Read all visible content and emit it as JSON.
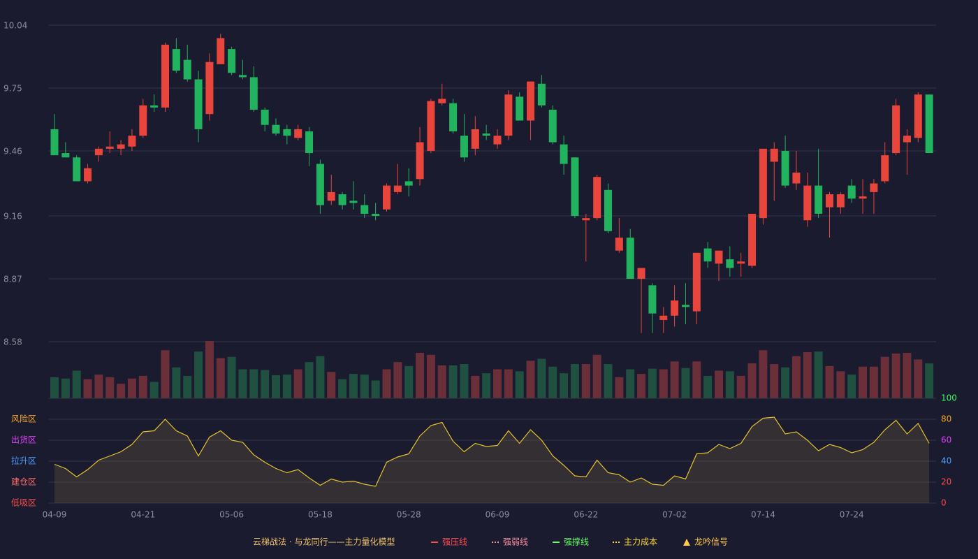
{
  "chart_data": [
    {
      "type": "candlestick",
      "categories": [
        "04-09",
        null,
        null,
        null,
        null,
        null,
        null,
        null,
        "04-21",
        null,
        null,
        null,
        null,
        null,
        null,
        null,
        "05-06",
        null,
        null,
        null,
        null,
        null,
        null,
        null,
        "05-18",
        null,
        null,
        null,
        null,
        null,
        null,
        null,
        "05-28",
        null,
        null,
        null,
        null,
        null,
        null,
        null,
        "06-09",
        null,
        null,
        null,
        null,
        null,
        null,
        null,
        "06-22",
        null,
        null,
        null,
        null,
        null,
        null,
        null,
        "07-02",
        null,
        null,
        null,
        null,
        null,
        null,
        null,
        "07-14",
        null,
        null,
        null,
        null,
        null,
        null,
        null,
        "07-24",
        null,
        null,
        null,
        null,
        null,
        null,
        null
      ],
      "open": [
        9.56,
        9.45,
        9.43,
        9.32,
        9.44,
        9.47,
        9.47,
        9.48,
        9.53,
        9.67,
        9.66,
        9.93,
        9.88,
        9.79,
        9.63,
        9.86,
        9.93,
        9.81,
        9.8,
        9.65,
        9.58,
        9.56,
        9.52,
        9.55,
        9.4,
        9.23,
        9.26,
        9.23,
        9.21,
        9.17,
        9.19,
        9.27,
        9.32,
        9.33,
        9.46,
        9.68,
        9.68,
        9.53,
        9.47,
        9.54,
        9.49,
        9.53,
        9.71,
        9.6,
        9.77,
        9.65,
        9.49,
        9.43,
        9.14,
        9.15,
        9.28,
        9.0,
        9.06,
        8.87,
        8.84,
        8.68,
        8.7,
        8.75,
        8.72,
        9.01,
        8.94,
        8.96,
        8.94,
        8.93,
        9.15,
        9.41,
        9.46,
        9.31,
        9.14,
        9.3,
        9.2,
        9.2,
        9.3,
        9.24,
        9.27,
        9.32,
        9.45,
        9.5,
        9.52,
        9.72
      ],
      "high": [
        9.63,
        9.5,
        9.44,
        9.4,
        9.48,
        9.55,
        9.51,
        9.56,
        9.7,
        9.72,
        9.96,
        9.98,
        9.95,
        9.83,
        9.91,
        10.0,
        9.94,
        9.88,
        9.85,
        9.66,
        9.61,
        9.58,
        9.58,
        9.57,
        9.42,
        9.35,
        9.27,
        9.32,
        9.26,
        9.22,
        9.31,
        9.4,
        9.38,
        9.57,
        9.7,
        9.77,
        9.7,
        9.63,
        9.62,
        9.58,
        9.56,
        9.74,
        9.73,
        9.78,
        9.81,
        9.67,
        9.53,
        9.43,
        9.17,
        9.35,
        9.31,
        9.15,
        9.1,
        8.92,
        8.85,
        8.74,
        8.84,
        8.85,
        8.99,
        9.04,
        9.0,
        9.02,
        8.99,
        9.17,
        9.47,
        9.5,
        9.53,
        9.46,
        9.36,
        9.47,
        9.27,
        9.27,
        9.33,
        9.33,
        9.33,
        9.5,
        9.7,
        9.56,
        9.73,
        9.72
      ],
      "low": [
        9.44,
        9.43,
        9.32,
        9.31,
        9.41,
        9.45,
        9.44,
        9.46,
        9.52,
        9.64,
        9.64,
        9.82,
        9.78,
        9.5,
        9.6,
        9.86,
        9.81,
        9.79,
        9.64,
        9.55,
        9.53,
        9.49,
        9.51,
        9.39,
        9.17,
        9.21,
        9.19,
        9.19,
        9.15,
        9.14,
        9.18,
        9.26,
        9.25,
        9.3,
        9.45,
        9.67,
        9.54,
        9.41,
        9.44,
        9.51,
        9.47,
        9.51,
        9.6,
        9.51,
        9.66,
        9.49,
        9.35,
        9.15,
        8.95,
        9.14,
        9.08,
        8.99,
        8.87,
        8.62,
        8.62,
        8.62,
        8.65,
        8.66,
        8.66,
        8.92,
        8.86,
        8.88,
        8.88,
        8.92,
        9.12,
        9.23,
        9.29,
        9.28,
        9.11,
        9.15,
        9.06,
        9.17,
        9.22,
        9.17,
        9.17,
        9.31,
        9.44,
        9.35,
        9.5,
        9.45
      ],
      "close": [
        9.44,
        9.43,
        9.32,
        9.38,
        9.47,
        9.48,
        9.49,
        9.53,
        9.67,
        9.66,
        9.95,
        9.83,
        9.79,
        9.56,
        9.87,
        9.98,
        9.82,
        9.8,
        9.65,
        9.58,
        9.54,
        9.53,
        9.56,
        9.45,
        9.21,
        9.27,
        9.21,
        9.22,
        9.17,
        9.16,
        9.3,
        9.3,
        9.3,
        9.5,
        9.69,
        9.7,
        9.55,
        9.43,
        9.56,
        9.53,
        9.53,
        9.72,
        9.6,
        9.78,
        9.67,
        9.5,
        9.4,
        9.16,
        9.15,
        9.34,
        9.09,
        9.06,
        8.87,
        8.92,
        8.71,
        8.7,
        8.77,
        8.74,
        8.99,
        8.95,
        9.0,
        8.92,
        8.95,
        9.17,
        9.47,
        9.47,
        9.3,
        9.36,
        9.3,
        9.17,
        9.26,
        9.26,
        9.24,
        9.25,
        9.31,
        9.44,
        9.67,
        9.53,
        9.72,
        9.45
      ],
      "up_color": "#e8453c",
      "down_color": "#21b35e",
      "ylim": [
        8.58,
        10.04
      ],
      "yticks": [
        8.58,
        8.87,
        9.16,
        9.46,
        9.75,
        10.04
      ],
      "grid": true,
      "legend": [
        {
          "label": "云梯战法 · 与龙同行——主力量化模型",
          "color": "#f0c36b",
          "style": "none"
        },
        {
          "label": "强压线",
          "color": "#ff4d4d",
          "style": "solid"
        },
        {
          "label": "强弱线",
          "color": "#ff8fa3",
          "style": "dashed"
        },
        {
          "label": "强撑线",
          "color": "#66ff66",
          "style": "solid"
        },
        {
          "label": "主力成本",
          "color": "#ffd740",
          "style": "dashed"
        },
        {
          "label": "龙吟信号",
          "color": "#ffc94a",
          "style": "triangle"
        }
      ]
    },
    {
      "type": "volume",
      "values": [
        32,
        30,
        42,
        29,
        36,
        32,
        22,
        30,
        34,
        25,
        73,
        47,
        34,
        71,
        87,
        61,
        63,
        44,
        44,
        43,
        35,
        36,
        44,
        55,
        64,
        40,
        29,
        37,
        36,
        27,
        44,
        55,
        49,
        69,
        66,
        50,
        50,
        52,
        34,
        38,
        44,
        44,
        41,
        57,
        60,
        48,
        38,
        52,
        52,
        66,
        52,
        32,
        44,
        37,
        45,
        44,
        56,
        46,
        56,
        34,
        42,
        41,
        34,
        53,
        73,
        52,
        47,
        64,
        70,
        71,
        49,
        41,
        36,
        48,
        48,
        63,
        68,
        69,
        59,
        53
      ],
      "up_color": "#6b2f3a",
      "down_color": "#1f5040"
    },
    {
      "type": "line",
      "values": [
        37,
        33,
        25,
        32,
        41,
        45,
        49,
        56,
        68,
        69,
        80,
        69,
        64,
        45,
        63,
        69,
        60,
        58,
        46,
        39,
        33,
        29,
        32,
        24,
        17,
        23,
        20,
        21,
        18,
        16,
        39,
        44,
        47,
        64,
        74,
        77,
        59,
        49,
        57,
        54,
        55,
        69,
        57,
        70,
        60,
        45,
        36,
        26,
        25,
        41,
        29,
        27,
        20,
        24,
        18,
        17,
        26,
        23,
        47,
        48,
        56,
        52,
        57,
        73,
        81,
        82,
        66,
        68,
        60,
        50,
        56,
        53,
        48,
        51,
        58,
        70,
        79,
        66,
        76,
        57
      ],
      "color": "#e6c22e",
      "ylim": [
        0,
        100
      ],
      "yticks": [
        0,
        20,
        40,
        60,
        80,
        100
      ],
      "ytick_colors": [
        "#ff4d4d",
        "#ff4d4d",
        "#4d9dff",
        "#e040fb",
        "#f5a623",
        "#33ff66"
      ],
      "zones": [
        {
          "value": 80,
          "label": "风险区",
          "color": "#f5a623"
        },
        {
          "value": 60,
          "label": "出货区",
          "color": "#e040fb"
        },
        {
          "value": 40,
          "label": "拉升区",
          "color": "#4d9dff"
        },
        {
          "value": 20,
          "label": "建仓区",
          "color": "#ff6b6b"
        },
        {
          "value": 0,
          "label": "低吸区",
          "color": "#ff4d4d"
        }
      ]
    }
  ]
}
